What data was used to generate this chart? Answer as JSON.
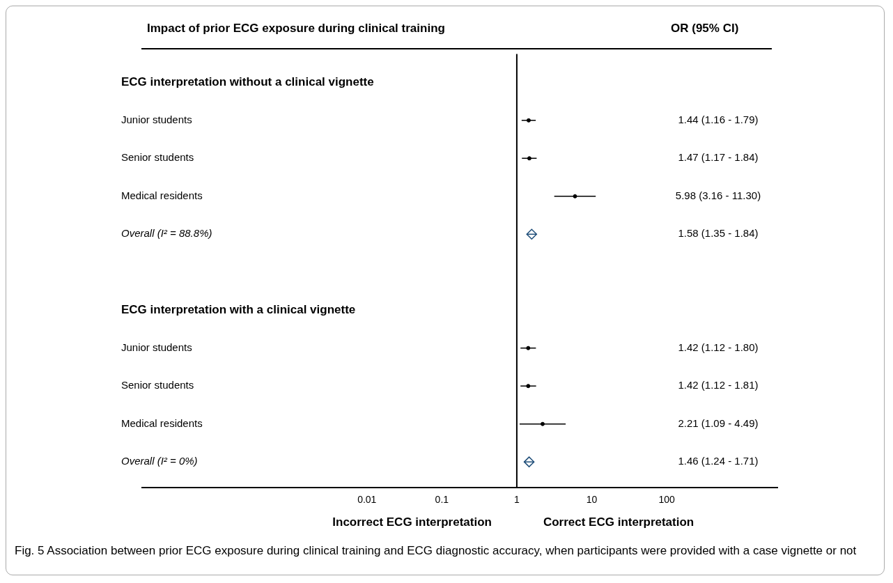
{
  "chart_data": {
    "type": "scatter",
    "orientation": "horizontal",
    "title": "Impact of prior ECG exposure during clinical training",
    "annotations": [
      "OR (95% CI)",
      "Incorrect ECG interpretation",
      "Correct ECG interpretation",
      "Fig. 5 Association between prior ECG exposure during clinical training and ECG diagnostic accuracy, when participants were provided with a case vignette or not",
      "1.44 (1.16 - 1.79)",
      "1.47 (1.17 - 1.84)",
      "5.98 (3.16 - 11.30)",
      "1.58 (1.35 - 1.84)",
      "1.42 (1.12 - 1.80)",
      "1.42 (1.12 - 1.81)",
      "2.21 (1.09 - 4.49)",
      "1.46 (1.24 - 1.71)"
    ],
    "categories": [
      "ECG interpretation without a clinical vignette",
      "Junior students",
      "Senior students",
      "Medical residents",
      "Overall (I² = 88.8%)",
      null,
      "ECG interpretation with a clinical vignette",
      "Junior students",
      "Senior students",
      "Medical residents",
      "Overall (I² = 0%)"
    ],
    "series": [
      {
        "color": "#000000",
        "marker": "circle",
        "values": [
          null,
          1.44,
          1.47,
          5.98,
          null,
          null,
          null,
          1.42,
          1.42,
          2.21,
          null
        ],
        "errors": [
          null,
          [
            1.16,
            1.79
          ],
          [
            1.17,
            1.84
          ],
          [
            3.16,
            11.3
          ],
          null,
          null,
          null,
          [
            1.12,
            1.8
          ],
          [
            1.12,
            1.81
          ],
          [
            1.09,
            4.49
          ],
          null
        ]
      },
      {
        "color": "#1f4e79",
        "marker": "diamond",
        "values": [
          null,
          null,
          null,
          null,
          1.58,
          null,
          null,
          null,
          null,
          null,
          1.46
        ],
        "errors": [
          null,
          null,
          null,
          null,
          [
            1.35,
            1.84
          ],
          null,
          null,
          null,
          null,
          null,
          [
            1.24,
            1.71
          ]
        ]
      }
    ],
    "log": "x",
    "xlim": [
      1e-05,
      3000
    ],
    "xticks": [
      0.01,
      0.1,
      1,
      10,
      100
    ],
    "ref_lines": [
      {
        "axis": "x",
        "value": 1,
        "color": "#000000"
      }
    ],
    "grid": false,
    "legend": false
  }
}
